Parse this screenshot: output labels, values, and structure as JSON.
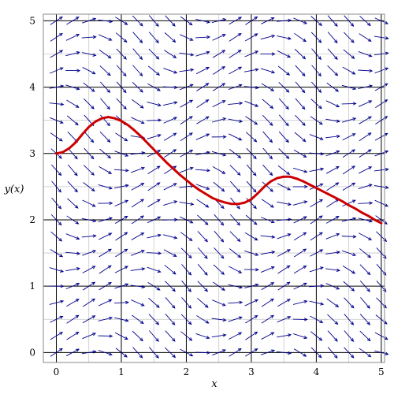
{
  "chart_data": {
    "type": "line",
    "title": "",
    "xlabel": "x",
    "ylabel": "y(x)",
    "xlim": [
      -0.2,
      5.05
    ],
    "ylim": [
      -0.15,
      5.1
    ],
    "grid": true,
    "x_ticks": [
      "0",
      "1",
      "2",
      "3",
      "4",
      "5"
    ],
    "y_ticks": [
      "0",
      "1",
      "2",
      "3",
      "4",
      "5"
    ],
    "field_cols": 21,
    "field_rows": 21,
    "field_color": "#00008b",
    "series": [
      {
        "color": "#cc0000",
        "x": [
          0.0,
          0.1,
          0.2,
          0.3,
          0.4,
          0.5,
          0.6,
          0.7,
          0.8,
          0.9,
          1.0,
          1.1,
          1.2,
          1.3,
          1.4,
          1.5,
          1.6,
          1.7,
          1.8,
          1.9,
          2.0,
          2.1,
          2.2,
          2.3,
          2.4,
          2.5,
          2.6,
          2.7,
          2.8,
          2.9,
          3.0,
          3.1,
          3.2,
          3.3,
          3.4,
          3.5,
          3.6,
          3.7,
          3.8,
          3.9,
          4.0,
          4.1,
          4.2,
          4.3,
          4.4,
          4.5,
          4.6,
          4.7,
          4.8,
          4.9,
          5.0
        ],
        "y": [
          3.0,
          3.02,
          3.08,
          3.17,
          3.29,
          3.4,
          3.48,
          3.53,
          3.55,
          3.53,
          3.49,
          3.43,
          3.35,
          3.26,
          3.16,
          3.06,
          2.96,
          2.86,
          2.77,
          2.68,
          2.6,
          2.52,
          2.45,
          2.39,
          2.33,
          2.29,
          2.26,
          2.24,
          2.24,
          2.26,
          2.31,
          2.4,
          2.5,
          2.58,
          2.63,
          2.65,
          2.65,
          2.62,
          2.58,
          2.53,
          2.48,
          2.43,
          2.38,
          2.33,
          2.28,
          2.22,
          2.17,
          2.11,
          2.06,
          2.0,
          1.95
        ]
      }
    ]
  }
}
